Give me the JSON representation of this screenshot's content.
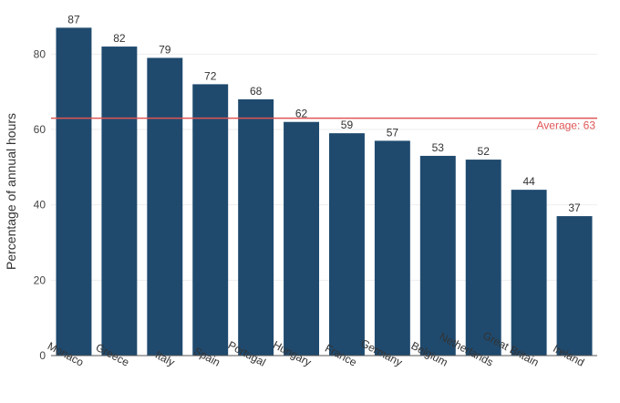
{
  "chart_data": {
    "type": "bar",
    "title": "",
    "xlabel": "",
    "ylabel": "Percentage of annual hours",
    "categories": [
      "Monaco",
      "Greece",
      "Italy",
      "Spain",
      "Portugal",
      "Hungary",
      "France",
      "Germany",
      "Belgium",
      "Netherlands",
      "Great Britain",
      "Ireland"
    ],
    "values": [
      87,
      82,
      79,
      72,
      68,
      62,
      59,
      57,
      53,
      52,
      44,
      37
    ],
    "ylim": [
      0,
      90
    ],
    "yticks": [
      0,
      20,
      40,
      60,
      80
    ],
    "grid": true,
    "bar_color": "#1f4a6e",
    "reference_line": {
      "label": "Average: 63",
      "value": 63,
      "color": "#e05555"
    }
  }
}
